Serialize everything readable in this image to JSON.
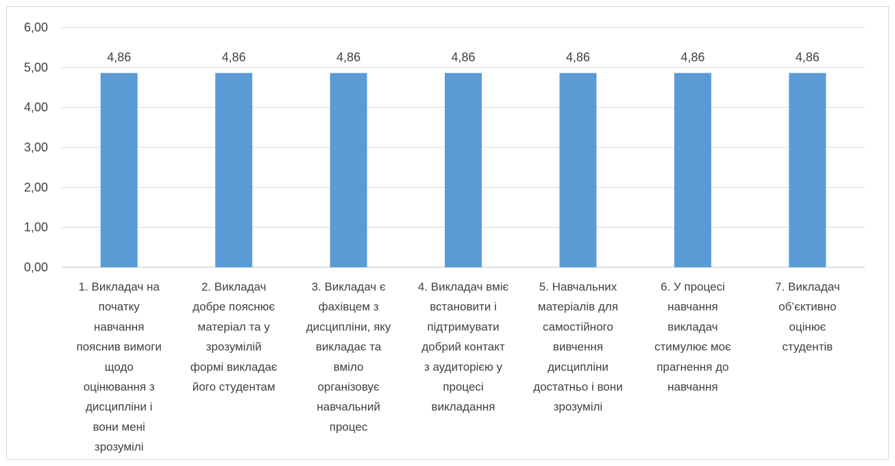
{
  "chart_data": {
    "type": "bar",
    "title": "",
    "xlabel": "",
    "ylabel": "",
    "ylim": [
      0,
      6
    ],
    "yticks": [
      "0,00",
      "1,00",
      "2,00",
      "3,00",
      "4,00",
      "5,00",
      "6,00"
    ],
    "grid": true,
    "legend": "none",
    "bar_color": "#5b9bd5",
    "categories": [
      "1. Викладач на початку навчання пояснив вимоги щодо оцінювання з дисципліни і вони мені зрозумілі",
      "2. Викладач добре пояснює матеріал та у зрозумілій формі викладає його студентам",
      "3. Викладач є фахівцем з дисципліни, яку викладає та вміло організовує навчальний процес",
      "4. Викладач вміє встановити і підтримувати добрий контакт з аудиторією у процесі викладання",
      "5. Навчальних матеріалів для самостійного вивчення дисципліни достатньо і вони зрозумілі",
      "6.  У процесі навчання викладач стимулює моє прагнення до навчання",
      "7. Викладач об’єктивно оцінює студентів"
    ],
    "category_label_lines": [
      [
        "1. Викладач на",
        "початку",
        "навчання",
        "пояснив вимоги",
        "щодо",
        "оцінювання з",
        "дисципліни і",
        "вони мені",
        "зрозумілі"
      ],
      [
        "2. Викладач",
        "добре пояснює",
        "матеріал та у",
        "зрозумілій",
        "формі викладає",
        "його студентам"
      ],
      [
        "3. Викладач є",
        "фахівцем з",
        "дисципліни, яку",
        "викладає та",
        "вміло",
        "організовує",
        "навчальний",
        "процес"
      ],
      [
        "4. Викладач вміє",
        "встановити і",
        "підтримувати",
        "добрий контакт",
        "з аудиторією у",
        "процесі",
        "викладання"
      ],
      [
        "5. Навчальних",
        "матеріалів для",
        "самостійного",
        "вивчення",
        "дисципліни",
        "достатньо і вони",
        "зрозумілі"
      ],
      [
        "6.  У процесі",
        "навчання",
        "викладач",
        "стимулює моє",
        "прагнення до",
        "навчання"
      ],
      [
        "7. Викладач",
        "об’єктивно",
        "оцінює",
        "студентів"
      ]
    ],
    "values": [
      4.86,
      4.86,
      4.86,
      4.86,
      4.86,
      4.86,
      4.86
    ],
    "data_labels": [
      "4,86",
      "4,86",
      "4,86",
      "4,86",
      "4,86",
      "4,86",
      "4,86"
    ]
  }
}
